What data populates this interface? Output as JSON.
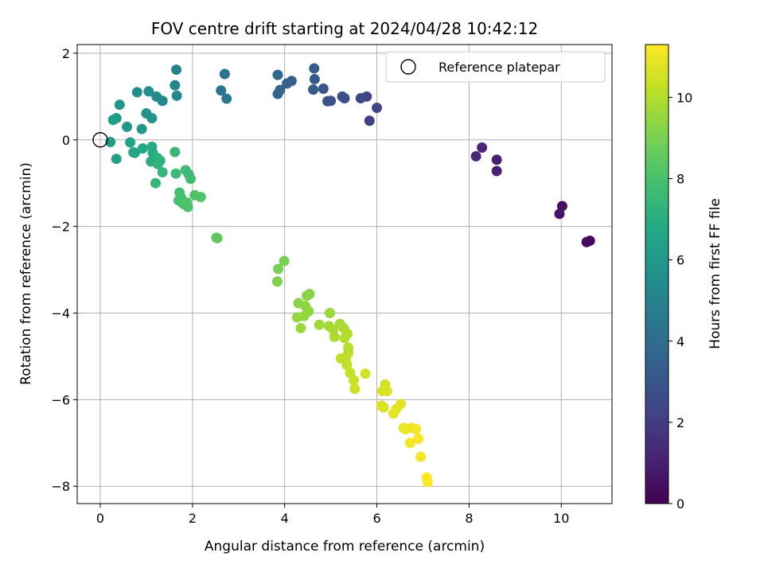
{
  "chart_data": {
    "type": "scatter",
    "title": "FOV centre drift starting at 2024/04/28 10:42:12",
    "xlabel": "Angular distance from reference (arcmin)",
    "ylabel": "Rotation from reference (arcmin)",
    "colorbar_label": "Hours from first FF file",
    "xlim": [
      -0.5,
      11.1
    ],
    "ylim": [
      -8.4,
      2.2
    ],
    "xticks": [
      0,
      2,
      4,
      6,
      8,
      10
    ],
    "yticks": [
      2,
      0,
      -2,
      -4,
      -6,
      -8
    ],
    "xtick_labels": [
      "0",
      "2",
      "4",
      "6",
      "8",
      "10"
    ],
    "ytick_labels": [
      "2",
      "0",
      "−2",
      "−4",
      "−6",
      "−8"
    ],
    "colorbar_range": [
      0,
      11.3
    ],
    "colorbar_ticks": [
      0,
      2,
      4,
      6,
      8,
      10
    ],
    "colorbar_tick_labels": [
      "0",
      "2",
      "4",
      "6",
      "8",
      "10"
    ],
    "colormap": "viridis",
    "grid": true,
    "legend": {
      "placement": "top-right",
      "label": "Reference platepar"
    },
    "reference_point": {
      "x": 0,
      "y": 0
    },
    "points": [
      {
        "x": 10.62,
        "y": -2.33,
        "t": 0.2
      },
      {
        "x": 10.55,
        "y": -2.36,
        "t": 0.3
      },
      {
        "x": 10.02,
        "y": -1.53,
        "t": 0.5
      },
      {
        "x": 9.96,
        "y": -1.71,
        "t": 0.6
      },
      {
        "x": 8.6,
        "y": -0.46,
        "t": 1.0
      },
      {
        "x": 8.6,
        "y": -0.72,
        "t": 1.1
      },
      {
        "x": 8.28,
        "y": -0.18,
        "t": 1.2
      },
      {
        "x": 8.15,
        "y": -0.38,
        "t": 1.3
      },
      {
        "x": 5.84,
        "y": 0.44,
        "t": 2.2
      },
      {
        "x": 6.0,
        "y": 0.74,
        "t": 2.3
      },
      {
        "x": 5.78,
        "y": 1.0,
        "t": 2.4
      },
      {
        "x": 5.65,
        "y": 0.96,
        "t": 2.5
      },
      {
        "x": 5.3,
        "y": 0.96,
        "t": 2.6
      },
      {
        "x": 5.25,
        "y": 1.0,
        "t": 2.7
      },
      {
        "x": 5.0,
        "y": 0.9,
        "t": 2.8
      },
      {
        "x": 4.93,
        "y": 0.89,
        "t": 2.9
      },
      {
        "x": 4.84,
        "y": 1.18,
        "t": 3.0
      },
      {
        "x": 4.62,
        "y": 1.16,
        "t": 3.1
      },
      {
        "x": 4.65,
        "y": 1.4,
        "t": 3.2
      },
      {
        "x": 4.64,
        "y": 1.65,
        "t": 3.3
      },
      {
        "x": 4.15,
        "y": 1.36,
        "t": 3.4
      },
      {
        "x": 4.05,
        "y": 1.3,
        "t": 3.5
      },
      {
        "x": 3.9,
        "y": 1.15,
        "t": 3.6
      },
      {
        "x": 3.85,
        "y": 1.06,
        "t": 3.7
      },
      {
        "x": 3.85,
        "y": 1.5,
        "t": 3.8
      },
      {
        "x": 2.7,
        "y": 1.52,
        "t": 4.3
      },
      {
        "x": 2.62,
        "y": 1.14,
        "t": 4.4
      },
      {
        "x": 2.74,
        "y": 0.95,
        "t": 4.5
      },
      {
        "x": 1.65,
        "y": 1.62,
        "t": 5.0
      },
      {
        "x": 1.62,
        "y": 1.26,
        "t": 5.1
      },
      {
        "x": 1.66,
        "y": 1.02,
        "t": 5.2
      },
      {
        "x": 1.35,
        "y": 0.9,
        "t": 5.3
      },
      {
        "x": 1.22,
        "y": 1.0,
        "t": 5.4
      },
      {
        "x": 1.05,
        "y": 1.12,
        "t": 5.5
      },
      {
        "x": 0.8,
        "y": 1.1,
        "t": 5.6
      },
      {
        "x": 1.0,
        "y": 0.61,
        "t": 5.7
      },
      {
        "x": 1.12,
        "y": 0.5,
        "t": 5.8
      },
      {
        "x": 0.58,
        "y": 0.3,
        "t": 5.9
      },
      {
        "x": 0.9,
        "y": 0.25,
        "t": 6.0
      },
      {
        "x": 0.42,
        "y": 0.81,
        "t": 6.0
      },
      {
        "x": 0.35,
        "y": 0.5,
        "t": 6.1
      },
      {
        "x": 0.28,
        "y": 0.46,
        "t": 6.2
      },
      {
        "x": 0.22,
        "y": -0.05,
        "t": 6.3
      },
      {
        "x": 0.35,
        "y": -0.44,
        "t": 6.4
      },
      {
        "x": 0.65,
        "y": -0.06,
        "t": 6.5
      },
      {
        "x": 0.72,
        "y": -0.29,
        "t": 6.6
      },
      {
        "x": 0.75,
        "y": -0.3,
        "t": 6.7
      },
      {
        "x": 0.92,
        "y": -0.2,
        "t": 6.8
      },
      {
        "x": 1.12,
        "y": -0.16,
        "t": 6.9
      },
      {
        "x": 1.14,
        "y": -0.3,
        "t": 7.0
      },
      {
        "x": 1.1,
        "y": -0.5,
        "t": 7.0
      },
      {
        "x": 1.24,
        "y": -0.42,
        "t": 7.1
      },
      {
        "x": 1.3,
        "y": -0.48,
        "t": 7.2
      },
      {
        "x": 1.25,
        "y": -0.56,
        "t": 7.3
      },
      {
        "x": 1.35,
        "y": -0.75,
        "t": 7.4
      },
      {
        "x": 1.2,
        "y": -1.0,
        "t": 7.4
      },
      {
        "x": 1.62,
        "y": -0.28,
        "t": 7.5
      },
      {
        "x": 1.64,
        "y": -0.78,
        "t": 7.6
      },
      {
        "x": 1.85,
        "y": -0.7,
        "t": 7.7
      },
      {
        "x": 1.92,
        "y": -0.8,
        "t": 7.7
      },
      {
        "x": 1.96,
        "y": -0.9,
        "t": 7.8
      },
      {
        "x": 1.72,
        "y": -1.22,
        "t": 7.8
      },
      {
        "x": 1.75,
        "y": -1.33,
        "t": 7.9
      },
      {
        "x": 1.7,
        "y": -1.4,
        "t": 7.9
      },
      {
        "x": 1.8,
        "y": -1.48,
        "t": 8.0
      },
      {
        "x": 1.9,
        "y": -1.55,
        "t": 8.0
      },
      {
        "x": 1.88,
        "y": -1.45,
        "t": 8.1
      },
      {
        "x": 2.05,
        "y": -1.28,
        "t": 8.1
      },
      {
        "x": 2.18,
        "y": -1.32,
        "t": 8.2
      },
      {
        "x": 2.52,
        "y": -2.26,
        "t": 8.5
      },
      {
        "x": 2.54,
        "y": -2.27,
        "t": 8.5
      },
      {
        "x": 3.99,
        "y": -2.8,
        "t": 9.0
      },
      {
        "x": 3.86,
        "y": -2.98,
        "t": 9.0
      },
      {
        "x": 3.84,
        "y": -3.27,
        "t": 9.1
      },
      {
        "x": 4.54,
        "y": -3.56,
        "t": 9.2
      },
      {
        "x": 4.48,
        "y": -3.6,
        "t": 9.3
      },
      {
        "x": 4.3,
        "y": -3.77,
        "t": 9.3
      },
      {
        "x": 4.45,
        "y": -3.84,
        "t": 9.4
      },
      {
        "x": 4.52,
        "y": -3.96,
        "t": 9.4
      },
      {
        "x": 4.27,
        "y": -4.1,
        "t": 9.5
      },
      {
        "x": 4.42,
        "y": -4.07,
        "t": 9.5
      },
      {
        "x": 4.35,
        "y": -4.35,
        "t": 9.6
      },
      {
        "x": 4.98,
        "y": -4.0,
        "t": 9.6
      },
      {
        "x": 4.75,
        "y": -4.27,
        "t": 9.7
      },
      {
        "x": 4.96,
        "y": -4.3,
        "t": 9.7
      },
      {
        "x": 5.2,
        "y": -4.25,
        "t": 9.8
      },
      {
        "x": 5.05,
        "y": -4.38,
        "t": 9.8
      },
      {
        "x": 5.08,
        "y": -4.55,
        "t": 9.9
      },
      {
        "x": 5.28,
        "y": -4.35,
        "t": 9.9
      },
      {
        "x": 5.36,
        "y": -4.48,
        "t": 10.0
      },
      {
        "x": 5.3,
        "y": -4.58,
        "t": 10.0
      },
      {
        "x": 5.38,
        "y": -4.8,
        "t": 10.1
      },
      {
        "x": 5.38,
        "y": -4.92,
        "t": 10.1
      },
      {
        "x": 5.22,
        "y": -5.05,
        "t": 10.2
      },
      {
        "x": 5.33,
        "y": -5.1,
        "t": 10.2
      },
      {
        "x": 5.35,
        "y": -5.2,
        "t": 10.3
      },
      {
        "x": 5.42,
        "y": -5.38,
        "t": 10.3
      },
      {
        "x": 5.5,
        "y": -5.55,
        "t": 10.4
      },
      {
        "x": 5.52,
        "y": -5.75,
        "t": 10.4
      },
      {
        "x": 5.75,
        "y": -5.4,
        "t": 10.5
      },
      {
        "x": 6.18,
        "y": -5.65,
        "t": 10.5
      },
      {
        "x": 6.12,
        "y": -5.8,
        "t": 10.6
      },
      {
        "x": 6.22,
        "y": -5.8,
        "t": 10.6
      },
      {
        "x": 6.1,
        "y": -6.14,
        "t": 10.7
      },
      {
        "x": 6.15,
        "y": -6.18,
        "t": 10.7
      },
      {
        "x": 6.52,
        "y": -6.1,
        "t": 10.8
      },
      {
        "x": 6.42,
        "y": -6.22,
        "t": 10.8
      },
      {
        "x": 6.36,
        "y": -6.32,
        "t": 10.9
      },
      {
        "x": 6.58,
        "y": -6.65,
        "t": 10.9
      },
      {
        "x": 6.62,
        "y": -6.68,
        "t": 11.0
      },
      {
        "x": 6.75,
        "y": -6.65,
        "t": 11.0
      },
      {
        "x": 6.85,
        "y": -6.68,
        "t": 11.1
      },
      {
        "x": 6.72,
        "y": -7.0,
        "t": 11.1
      },
      {
        "x": 6.9,
        "y": -6.9,
        "t": 11.2
      },
      {
        "x": 6.95,
        "y": -7.32,
        "t": 11.2
      },
      {
        "x": 7.08,
        "y": -7.8,
        "t": 11.3
      },
      {
        "x": 7.1,
        "y": -7.9,
        "t": 11.3
      }
    ]
  }
}
